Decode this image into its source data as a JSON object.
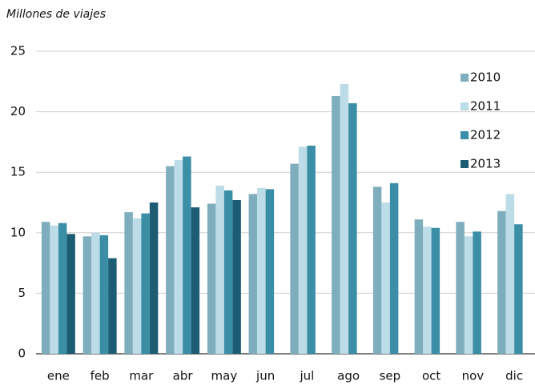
{
  "chart_data": {
    "type": "bar",
    "title": "Millones de viajes",
    "categories": [
      "ene",
      "feb",
      "mar",
      "abr",
      "may",
      "jun",
      "jul",
      "ago",
      "sep",
      "oct",
      "nov",
      "dic"
    ],
    "series": [
      {
        "name": "2010",
        "color": "#7eaebd",
        "values": [
          10.9,
          9.7,
          11.7,
          15.5,
          12.4,
          13.2,
          15.7,
          21.3,
          13.8,
          11.1,
          10.9,
          11.8
        ]
      },
      {
        "name": "2011",
        "color": "#bcdce8",
        "values": [
          10.6,
          10.0,
          11.2,
          16.0,
          13.9,
          13.7,
          17.1,
          22.3,
          12.5,
          10.5,
          9.7,
          13.2
        ]
      },
      {
        "name": "2012",
        "color": "#3a8ea6",
        "values": [
          10.8,
          9.8,
          11.6,
          16.3,
          13.5,
          13.6,
          17.2,
          20.7,
          14.1,
          10.4,
          10.1,
          10.7
        ]
      },
      {
        "name": "2013",
        "color": "#1c5d74",
        "values": [
          9.9,
          7.9,
          12.5,
          12.1,
          12.7,
          null,
          null,
          null,
          null,
          null,
          null,
          null
        ]
      }
    ],
    "ylim": [
      0,
      25
    ],
    "yticks": [
      0,
      5,
      10,
      15,
      20,
      25
    ],
    "grid": true,
    "legend": "top-right"
  }
}
